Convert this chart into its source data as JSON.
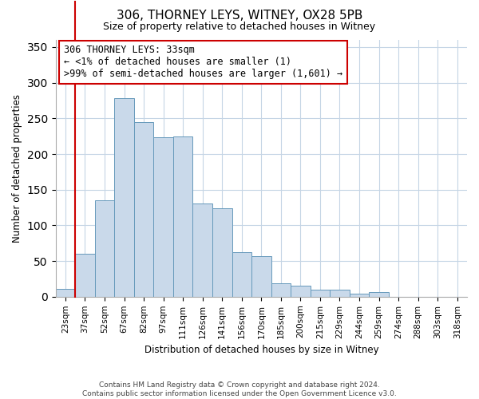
{
  "title": "306, THORNEY LEYS, WITNEY, OX28 5PB",
  "subtitle": "Size of property relative to detached houses in Witney",
  "xlabel": "Distribution of detached houses by size in Witney",
  "ylabel": "Number of detached properties",
  "bar_labels": [
    "23sqm",
    "37sqm",
    "52sqm",
    "67sqm",
    "82sqm",
    "97sqm",
    "111sqm",
    "126sqm",
    "141sqm",
    "156sqm",
    "170sqm",
    "185sqm",
    "200sqm",
    "215sqm",
    "229sqm",
    "244sqm",
    "259sqm",
    "274sqm",
    "288sqm",
    "303sqm",
    "318sqm"
  ],
  "bar_values": [
    11,
    60,
    135,
    278,
    245,
    223,
    225,
    131,
    124,
    63,
    57,
    19,
    16,
    10,
    10,
    4,
    6,
    0,
    0,
    0,
    0
  ],
  "bar_color": "#c9d9ea",
  "bar_edge_color": "#6699bb",
  "ylim": [
    0,
    360
  ],
  "yticks": [
    0,
    50,
    100,
    150,
    200,
    250,
    300,
    350
  ],
  "annotation_title": "306 THORNEY LEYS: 33sqm",
  "annotation_line1": "← <1% of detached houses are smaller (1)",
  "annotation_line2": ">99% of semi-detached houses are larger (1,601) →",
  "red_line_x": 0.5,
  "footer_line1": "Contains HM Land Registry data © Crown copyright and database right 2024.",
  "footer_line2": "Contains public sector information licensed under the Open Government Licence v3.0.",
  "background_color": "#ffffff",
  "grid_color": "#c5d5e5",
  "annotation_box_color": "#ffffff",
  "annotation_box_edge": "#cc0000"
}
